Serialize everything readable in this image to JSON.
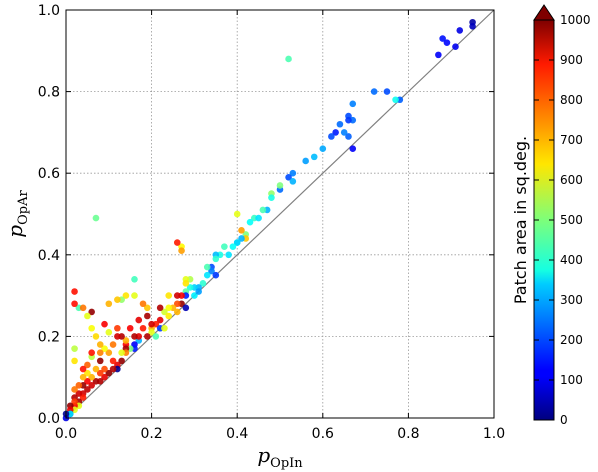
{
  "chart_data": {
    "type": "scatter",
    "xlabel": {
      "main": "p",
      "sub": "OpIn"
    },
    "ylabel": {
      "main": "p",
      "sub": "OpAr"
    },
    "xlim": [
      0.0,
      1.0
    ],
    "ylim": [
      0.0,
      1.0
    ],
    "x_ticks": [
      "0.0",
      "0.2",
      "0.4",
      "0.6",
      "0.8",
      "1.0"
    ],
    "y_ticks": [
      "0.0",
      "0.2",
      "0.4",
      "0.6",
      "0.8",
      "1.0"
    ],
    "grid": true,
    "reference_line": "y = x",
    "colorbar": {
      "label": "Patch area in sq.deg.",
      "range": [
        0,
        1000
      ],
      "ticks": [
        "0",
        "100",
        "200",
        "300",
        "400",
        "500",
        "600",
        "700",
        "800",
        "900",
        "1000"
      ],
      "colormap": "jet",
      "extend": "max"
    },
    "points": [
      [
        0.95,
        0.97,
        40
      ],
      [
        0.95,
        0.96,
        60
      ],
      [
        0.92,
        0.95,
        100
      ],
      [
        0.91,
        0.91,
        110
      ],
      [
        0.89,
        0.92,
        130
      ],
      [
        0.88,
        0.93,
        140
      ],
      [
        0.87,
        0.89,
        120
      ],
      [
        0.78,
        0.78,
        220
      ],
      [
        0.77,
        0.78,
        390
      ],
      [
        0.75,
        0.8,
        200
      ],
      [
        0.72,
        0.8,
        230
      ],
      [
        0.67,
        0.77,
        250
      ],
      [
        0.66,
        0.74,
        200
      ],
      [
        0.67,
        0.73,
        230
      ],
      [
        0.66,
        0.73,
        180
      ],
      [
        0.64,
        0.72,
        230
      ],
      [
        0.63,
        0.7,
        150
      ],
      [
        0.62,
        0.69,
        200
      ],
      [
        0.66,
        0.69,
        220
      ],
      [
        0.65,
        0.7,
        250
      ],
      [
        0.67,
        0.66,
        120
      ],
      [
        0.6,
        0.66,
        290
      ],
      [
        0.58,
        0.64,
        310
      ],
      [
        0.56,
        0.63,
        280
      ],
      [
        0.52,
        0.88,
        450
      ],
      [
        0.53,
        0.6,
        250
      ],
      [
        0.52,
        0.59,
        200
      ],
      [
        0.5,
        0.56,
        230
      ],
      [
        0.53,
        0.58,
        300
      ],
      [
        0.5,
        0.57,
        500
      ],
      [
        0.48,
        0.55,
        520
      ],
      [
        0.48,
        0.54,
        400
      ],
      [
        0.47,
        0.51,
        300
      ],
      [
        0.46,
        0.51,
        450
      ],
      [
        0.44,
        0.49,
        430
      ],
      [
        0.45,
        0.49,
        350
      ],
      [
        0.43,
        0.48,
        380
      ],
      [
        0.42,
        0.45,
        500
      ],
      [
        0.42,
        0.44,
        680
      ],
      [
        0.41,
        0.44,
        300
      ],
      [
        0.4,
        0.43,
        410
      ],
      [
        0.4,
        0.43,
        330
      ],
      [
        0.39,
        0.42,
        380
      ],
      [
        0.41,
        0.46,
        720
      ],
      [
        0.4,
        0.5,
        600
      ],
      [
        0.38,
        0.4,
        350
      ],
      [
        0.37,
        0.42,
        440
      ],
      [
        0.36,
        0.4,
        400
      ],
      [
        0.35,
        0.4,
        310
      ],
      [
        0.34,
        0.37,
        200
      ],
      [
        0.34,
        0.36,
        250
      ],
      [
        0.33,
        0.35,
        350
      ],
      [
        0.33,
        0.37,
        450
      ],
      [
        0.35,
        0.35,
        180
      ],
      [
        0.32,
        0.33,
        420
      ],
      [
        0.31,
        0.32,
        300
      ],
      [
        0.3,
        0.32,
        330
      ],
      [
        0.29,
        0.32,
        400
      ],
      [
        0.29,
        0.34,
        550
      ],
      [
        0.28,
        0.34,
        600
      ],
      [
        0.28,
        0.33,
        650
      ],
      [
        0.28,
        0.31,
        460
      ],
      [
        0.27,
        0.42,
        630
      ],
      [
        0.27,
        0.41,
        720
      ],
      [
        0.26,
        0.43,
        850
      ],
      [
        0.28,
        0.3,
        160
      ],
      [
        0.27,
        0.3,
        880
      ],
      [
        0.26,
        0.3,
        920
      ],
      [
        0.27,
        0.28,
        980
      ],
      [
        0.28,
        0.27,
        50
      ],
      [
        0.26,
        0.28,
        800
      ],
      [
        0.25,
        0.27,
        700
      ],
      [
        0.24,
        0.3,
        650
      ],
      [
        0.24,
        0.27,
        620
      ],
      [
        0.23,
        0.26,
        580
      ],
      [
        0.22,
        0.27,
        950
      ],
      [
        0.22,
        0.24,
        900
      ],
      [
        0.21,
        0.23,
        850
      ],
      [
        0.22,
        0.22,
        180
      ],
      [
        0.2,
        0.22,
        700
      ],
      [
        0.2,
        0.21,
        600
      ],
      [
        0.21,
        0.2,
        450
      ],
      [
        0.2,
        0.23,
        920
      ],
      [
        0.19,
        0.2,
        950
      ],
      [
        0.19,
        0.27,
        680
      ],
      [
        0.18,
        0.28,
        760
      ],
      [
        0.18,
        0.22,
        850
      ],
      [
        0.17,
        0.19,
        300
      ],
      [
        0.17,
        0.2,
        900
      ],
      [
        0.16,
        0.2,
        950
      ],
      [
        0.16,
        0.18,
        120
      ],
      [
        0.16,
        0.17,
        150
      ],
      [
        0.16,
        0.3,
        600
      ],
      [
        0.16,
        0.34,
        440
      ],
      [
        0.15,
        0.17,
        500
      ],
      [
        0.14,
        0.18,
        880
      ],
      [
        0.14,
        0.17,
        960
      ],
      [
        0.14,
        0.16,
        750
      ],
      [
        0.14,
        0.19,
        700
      ],
      [
        0.14,
        0.3,
        650
      ],
      [
        0.13,
        0.29,
        520
      ],
      [
        0.13,
        0.2,
        950
      ],
      [
        0.13,
        0.16,
        600
      ],
      [
        0.13,
        0.14,
        980
      ],
      [
        0.12,
        0.2,
        920
      ],
      [
        0.12,
        0.13,
        900
      ],
      [
        0.12,
        0.12,
        20
      ],
      [
        0.12,
        0.29,
        680
      ],
      [
        0.11,
        0.14,
        850
      ],
      [
        0.11,
        0.12,
        950
      ],
      [
        0.1,
        0.16,
        720
      ],
      [
        0.1,
        0.21,
        600
      ],
      [
        0.1,
        0.28,
        700
      ],
      [
        0.1,
        0.11,
        980
      ],
      [
        0.09,
        0.23,
        880
      ],
      [
        0.09,
        0.12,
        800
      ],
      [
        0.09,
        0.1,
        900
      ],
      [
        0.09,
        0.17,
        620
      ],
      [
        0.08,
        0.11,
        820
      ],
      [
        0.08,
        0.09,
        950
      ],
      [
        0.08,
        0.14,
        980
      ],
      [
        0.08,
        0.16,
        750
      ],
      [
        0.07,
        0.2,
        660
      ],
      [
        0.07,
        0.12,
        700
      ],
      [
        0.07,
        0.09,
        960
      ],
      [
        0.07,
        0.49,
        480
      ],
      [
        0.06,
        0.08,
        920
      ],
      [
        0.06,
        0.1,
        700
      ],
      [
        0.06,
        0.15,
        560
      ],
      [
        0.06,
        0.16,
        860
      ],
      [
        0.06,
        0.26,
        980
      ],
      [
        0.05,
        0.07,
        940
      ],
      [
        0.05,
        0.09,
        880
      ],
      [
        0.05,
        0.11,
        650
      ],
      [
        0.05,
        0.13,
        780
      ],
      [
        0.04,
        0.08,
        980
      ],
      [
        0.04,
        0.06,
        920
      ],
      [
        0.04,
        0.1,
        700
      ],
      [
        0.04,
        0.12,
        860
      ],
      [
        0.04,
        0.05,
        850
      ],
      [
        0.03,
        0.06,
        920
      ],
      [
        0.03,
        0.08,
        780
      ],
      [
        0.03,
        0.04,
        970
      ],
      [
        0.03,
        0.03,
        600
      ],
      [
        0.02,
        0.05,
        950
      ],
      [
        0.02,
        0.03,
        880
      ],
      [
        0.02,
        0.04,
        820
      ],
      [
        0.02,
        0.02,
        600
      ],
      [
        0.03,
        0.27,
        450
      ],
      [
        0.02,
        0.28,
        860
      ],
      [
        0.02,
        0.31,
        860
      ],
      [
        0.02,
        0.17,
        560
      ],
      [
        0.02,
        0.14,
        650
      ],
      [
        0.02,
        0.07,
        760
      ],
      [
        0.01,
        0.03,
        980
      ],
      [
        0.01,
        0.02,
        900
      ],
      [
        0.01,
        0.01,
        40
      ],
      [
        0.01,
        0.01,
        350
      ],
      [
        0.0,
        0.0,
        100
      ],
      [
        0.0,
        0.01,
        20
      ],
      [
        0.04,
        0.27,
        760
      ],
      [
        0.05,
        0.25,
        600
      ],
      [
        0.06,
        0.22,
        620
      ],
      [
        0.08,
        0.18,
        700
      ],
      [
        0.11,
        0.18,
        760
      ],
      [
        0.12,
        0.22,
        820
      ],
      [
        0.15,
        0.22,
        880
      ],
      [
        0.17,
        0.24,
        900
      ],
      [
        0.19,
        0.25,
        960
      ],
      [
        0.23,
        0.22,
        600
      ],
      [
        0.24,
        0.25,
        640
      ],
      [
        0.26,
        0.26,
        700
      ],
      [
        0.3,
        0.3,
        360
      ],
      [
        0.31,
        0.31,
        280
      ],
      [
        0.35,
        0.39,
        420
      ]
    ]
  }
}
